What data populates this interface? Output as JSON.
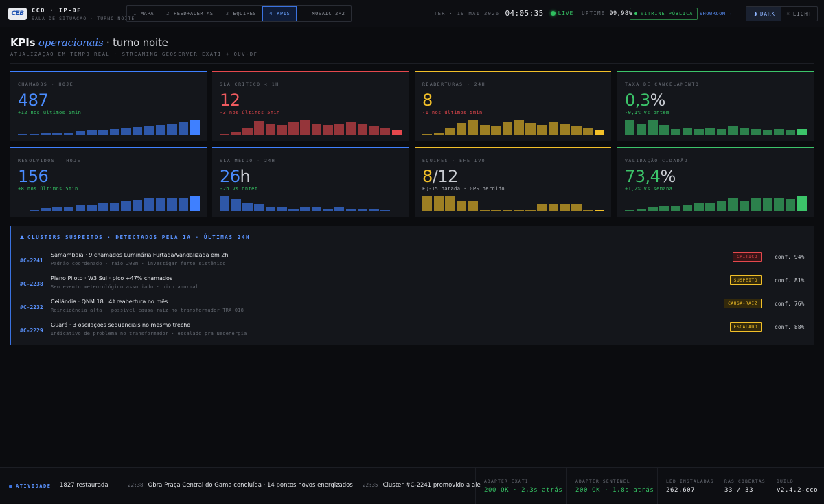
{
  "topbar": {
    "logo_text": "CEB",
    "brand_title": "CCO · IP-DF",
    "brand_sub": "SALA DE SITUAÇÃO · TURNO NOITE",
    "tabs": [
      {
        "num": "1",
        "label": "MAPA"
      },
      {
        "num": "2",
        "label": "FEED+ALERTAS"
      },
      {
        "num": "3",
        "label": "EQUIPES"
      },
      {
        "num": "4",
        "label": "KPIS"
      }
    ],
    "mosaic_label": "MOSAIC 2×2",
    "date": "TER · 19 MAI 2026",
    "time": "04:05:35",
    "live": "LIVE",
    "uptime_label": "UPTIME",
    "uptime_value": "99,98%",
    "vitrine_label": "VITRINE PÚBLICA",
    "showroom_label": "SHOWROOM →",
    "theme_dark": "DARK",
    "theme_light": "LIGHT"
  },
  "header": {
    "title_bold": "KPIs",
    "title_italic": "operacionais",
    "title_rest": "· turno noite",
    "subtitle": "ATUALIZAÇÃO EM TEMPO REAL · STREAMING GEOSERVER EXATI + OUV-DF"
  },
  "colors": {
    "blue": "#3f80ff",
    "red": "#e5484d",
    "yellow": "#f2c029",
    "green": "#3cc46a"
  },
  "kpis": [
    {
      "label": "CHAMADOS · HOJE",
      "value": "487",
      "suffix": "",
      "delta": "+12 nos últimos 5min",
      "accent": "#3f80ff",
      "value_color": "#4a8cff",
      "delta_color": "#36c565",
      "bars": [
        2,
        2,
        3,
        3,
        4,
        5,
        6,
        7,
        8,
        9,
        11,
        12,
        14,
        15,
        17,
        20
      ]
    },
    {
      "label": "SLA CRÍTICO < 1H",
      "value": "12",
      "suffix": "",
      "delta": "-3 nos últimos 5min",
      "accent": "#e5484d",
      "value_color": "#ef5a5f",
      "delta_color": "#e5484d",
      "bars": [
        2,
        4,
        9,
        18,
        14,
        13,
        16,
        19,
        15,
        13,
        14,
        16,
        15,
        12,
        9,
        6
      ]
    },
    {
      "label": "REABERTURAS · 24H",
      "value": "8",
      "suffix": "",
      "delta": "-1 nos últimos 5min",
      "accent": "#f2c029",
      "value_color": "#f2c029",
      "delta_color": "#e5484d",
      "bars": [
        2,
        3,
        9,
        16,
        20,
        14,
        12,
        18,
        20,
        16,
        14,
        17,
        15,
        12,
        10,
        7
      ]
    },
    {
      "label": "TAXA DE CANCELAMENTO",
      "value": "0,3",
      "suffix": "%",
      "delta": "-0,1% vs ontem",
      "accent": "#3cc46a",
      "value_color": "#3cc46a",
      "delta_color": "#36c565",
      "bars": [
        20,
        15,
        20,
        14,
        8,
        10,
        8,
        10,
        8,
        12,
        10,
        8,
        6,
        8,
        6,
        8
      ]
    },
    {
      "label": "RESOLVIDOS · HOJE",
      "value": "156",
      "suffix": "",
      "delta": "+8 nos últimos 5min",
      "accent": "#3f80ff",
      "value_color": "#4a8cff",
      "delta_color": "#36c565",
      "bars": [
        1,
        2,
        4,
        5,
        6,
        8,
        9,
        10,
        11,
        13,
        15,
        16,
        17,
        17,
        17,
        19
      ]
    },
    {
      "label": "SLA MÉDIO · 24H",
      "value": "26",
      "suffix": "h",
      "delta": "-2h vs ontem",
      "accent": "#3f80ff",
      "value_color": "#4a8cff",
      "delta_color": "#36c565",
      "bars": [
        20,
        16,
        12,
        10,
        6,
        6,
        4,
        6,
        5,
        4,
        6,
        4,
        3,
        3,
        2,
        1
      ]
    },
    {
      "label": "EQUIPES · EFETIVO",
      "value": "8",
      "suffix": "/12",
      "delta": "EQ-15 parada · GPS perdido",
      "accent": "#f2c029",
      "value_color": "#f2c029",
      "delta_color": "#b7bac1",
      "bars": [
        20,
        20,
        20,
        14,
        14,
        2,
        2,
        2,
        2,
        2,
        10,
        10,
        10,
        10,
        2,
        2
      ]
    },
    {
      "label": "VALIDAÇÃO CIDADÃO",
      "value": "73,4",
      "suffix": "%",
      "delta": "+1,2% vs semana",
      "accent": "#3cc46a",
      "value_color": "#3cc46a",
      "delta_color": "#36c565",
      "bars": [
        2,
        3,
        6,
        8,
        8,
        10,
        12,
        12,
        14,
        18,
        15,
        18,
        18,
        19,
        17,
        21
      ]
    }
  ],
  "clusters": {
    "heading": "CLUSTERS SUSPEITOS · DETECTADOS PELA IA · ÚLTIMAS 24H",
    "items": [
      {
        "id": "#C-2241",
        "title": "Samambaia · 9 chamados Luminária Furtada/Vandalizada em 2h",
        "desc": "Padrão coordenado · raio 200m · investigar furto sistêmico",
        "badge": "CRÍTICO",
        "badge_color": "#e5484d",
        "badge_bg": "#3a1416",
        "conf": "conf. 94%"
      },
      {
        "id": "#C-2238",
        "title": "Plano Piloto · W3 Sul · pico +47% chamados",
        "desc": "Sem evento meteorológico associado · pico anormal",
        "badge": "SUSPEITO",
        "badge_color": "#f2c029",
        "badge_bg": "#33290b",
        "conf": "conf. 81%"
      },
      {
        "id": "#C-2232",
        "title": "Ceilândia · QNM 18 · 4ª reabertura no mês",
        "desc": "Reincidência alta · possível causa-raiz no transformador TRA-018",
        "badge": "CAUSA-RAIZ",
        "badge_color": "#f2c029",
        "badge_bg": "#33290b",
        "conf": "conf. 76%"
      },
      {
        "id": "#C-2229",
        "title": "Guará · 3 oscilações sequenciais no mesmo trecho",
        "desc": "Indicativo de problema no transformador · escalado pra Neoenergia",
        "badge": "ESCALADO",
        "badge_color": "#f2c029",
        "badge_bg": "#33290b",
        "conf": "conf. 88%"
      }
    ]
  },
  "footer": {
    "activity_label": "ATIVIDADE",
    "ticker": [
      {
        "time": "",
        "text": "1827 restaurada"
      },
      {
        "time": "22:38",
        "text": "Obra Praça Central do Gama concluída · 14 pontos novos energizados"
      },
      {
        "time": "22:35",
        "text": "Cluster #C-2241 promovido a ale"
      }
    ],
    "stats": [
      {
        "label": "ADAPTER EXATI",
        "value": "200 OK · 2,3s atrás",
        "color": "#36c565"
      },
      {
        "label": "ADAPTER SENTINEL",
        "value": "200 OK · 1,8s atrás",
        "color": "#36c565"
      },
      {
        "label": "LED INSTALADAS",
        "value": "262.607",
        "color": "#e6e8ec"
      },
      {
        "label": "RAS COBERTAS",
        "value": "33 / 33",
        "color": "#e6e8ec"
      },
      {
        "label": "BUILD",
        "value": "v2.4.2-cco",
        "color": "#e6e8ec"
      }
    ]
  }
}
